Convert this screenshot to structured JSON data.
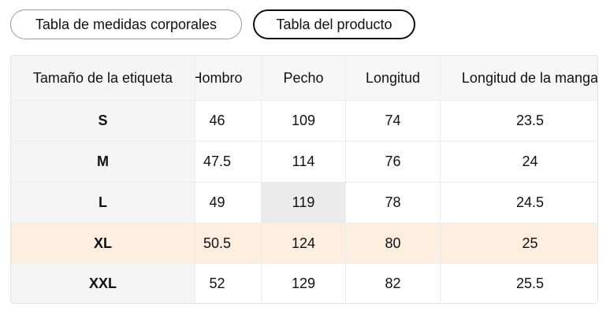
{
  "tabs": [
    "Tabla de medidas corporales",
    "Tabla del producto"
  ],
  "table": {
    "header": [
      "Tamaño de la etiqueta",
      "Hombro",
      "Pecho",
      "Longitud",
      "Longitud de la manga"
    ],
    "rows": [
      [
        "S",
        46,
        109,
        74,
        23.5
      ],
      [
        "M",
        47.5,
        114,
        76,
        24
      ],
      [
        "L",
        49,
        119,
        78,
        24.5
      ],
      [
        "XL",
        50.5,
        124,
        80,
        25
      ],
      [
        "XXL",
        52,
        129,
        82,
        25.5
      ]
    ]
  }
}
